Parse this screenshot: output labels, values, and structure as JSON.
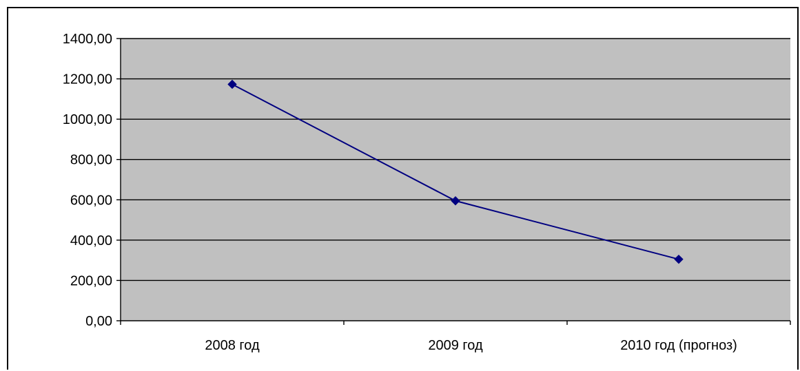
{
  "chart_data": {
    "type": "line",
    "categories": [
      "2008 год",
      "2009 год",
      "2010 год (прогноз)"
    ],
    "series": [
      {
        "values": [
          1173,
          595,
          305
        ]
      }
    ],
    "y_ticks": [
      "0,00",
      "200,00",
      "400,00",
      "600,00",
      "800,00",
      "1000,00",
      "1200,00",
      "1400,00"
    ],
    "ylim": [
      0,
      1400
    ],
    "grid": true,
    "legend": false,
    "colors": {
      "plot_background": "#c0c0c0",
      "line": "#000080",
      "marker": "#000080",
      "gridline": "#000000",
      "frame": "#000000"
    }
  }
}
